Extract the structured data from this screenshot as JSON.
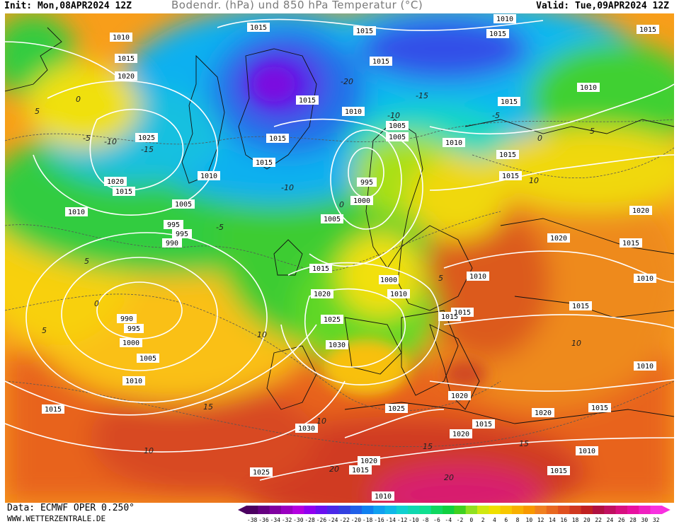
{
  "header": {
    "init_text": "Init: Mon,08APR2024 12Z",
    "title": "Bodendr. (hPa) und 850 hPa Temperatur (°C)",
    "valid_text": "Valid: Tue,09APR2024 12Z"
  },
  "footer": {
    "source": "Data: ECMWF OPER 0.250°",
    "website": "WWW.WETTERZENTRALE.DE"
  },
  "legend": {
    "ticks": [
      "-38",
      "-36",
      "-34",
      "-32",
      "-30",
      "-28",
      "-26",
      "-24",
      "-22",
      "-20",
      "-18",
      "-16",
      "-14",
      "-12",
      "-10",
      "-8",
      "-6",
      "-4",
      "-2",
      "0",
      "2",
      "4",
      "6",
      "8",
      "10",
      "12",
      "14",
      "16",
      "18",
      "20",
      "22",
      "24",
      "26",
      "28",
      "30",
      "32"
    ],
    "colors": [
      "#4b0060",
      "#650080",
      "#8000a0",
      "#9a00c0",
      "#b400e0",
      "#9000f0",
      "#6a10f0",
      "#4a28e8",
      "#3240e0",
      "#2060e8",
      "#1080f0",
      "#10a0f0",
      "#10b8e8",
      "#10d0d0",
      "#10d8b0",
      "#10e090",
      "#10d860",
      "#10d040",
      "#40d020",
      "#90e020",
      "#d0e810",
      "#f0e000",
      "#f8c800",
      "#f8b000",
      "#f89800",
      "#f08020",
      "#e86820",
      "#e05020",
      "#d03820",
      "#c02020",
      "#b01040",
      "#c01060",
      "#d81080",
      "#e810a0",
      "#f020c0",
      "#f830e0"
    ]
  },
  "isobar_labels": [
    "1010",
    "1015",
    "1010",
    "1015",
    "1020",
    "1025",
    "1020",
    "1015",
    "1010",
    "1005",
    "995",
    "990",
    "990",
    "995",
    "1000",
    "1005",
    "1010",
    "1015",
    "1015",
    "1015",
    "1015",
    "1015",
    "1015",
    "1010",
    "1005",
    "995",
    "1000",
    "1005",
    "1015",
    "1020",
    "1025",
    "1030",
    "1000",
    "1010",
    "1005",
    "1010",
    "1010",
    "1015",
    "1015",
    "1010",
    "1015",
    "1015",
    "1015",
    "1010",
    "1015",
    "1020",
    "1020",
    "1010",
    "1015",
    "1020",
    "1015",
    "1015",
    "1025",
    "1030",
    "1025",
    "1020",
    "1015",
    "1010",
    "1005",
    "1010",
    "1010",
    "1015",
    "1015",
    "1015",
    "1015",
    "1020"
  ],
  "temp_labels": [
    "5",
    "0",
    "-5",
    "-10",
    "-15",
    "-20",
    "-10",
    "-15",
    "-5",
    "-10",
    "0",
    "5",
    "10",
    "15",
    "10",
    "5",
    "0",
    "-5",
    "10",
    "15",
    "20",
    "10",
    "15",
    "20",
    "10",
    "5",
    "0",
    "5"
  ]
}
